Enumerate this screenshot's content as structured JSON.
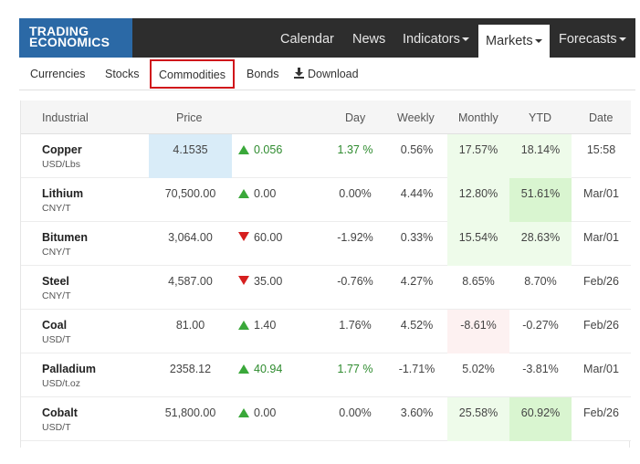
{
  "brand": {
    "line1": "TRADING",
    "line2": "ECONOMICS"
  },
  "nav": {
    "calendar": "Calendar",
    "news": "News",
    "indicators": "Indicators",
    "markets": "Markets",
    "forecasts": "Forecasts"
  },
  "subnav": {
    "currencies": "Currencies",
    "stocks": "Stocks",
    "commodities": "Commodities",
    "bonds": "Bonds",
    "download": "Download"
  },
  "table": {
    "headers": {
      "name": "Industrial",
      "price": "Price",
      "day": "Day",
      "weekly": "Weekly",
      "monthly": "Monthly",
      "ytd": "YTD",
      "date": "Date"
    },
    "rows": [
      {
        "name": "Copper",
        "unit": "USD/Lbs",
        "price": "4.1535",
        "change": "0.056",
        "direction": "up",
        "day": "1.37 %",
        "weekly": "0.56%",
        "monthly": "17.57%",
        "ytd": "18.14%",
        "date": "15:58"
      },
      {
        "name": "Lithium",
        "unit": "CNY/T",
        "price": "70,500.00",
        "change": "0.00",
        "direction": "up",
        "day": "0.00%",
        "weekly": "4.44%",
        "monthly": "12.80%",
        "ytd": "51.61%",
        "date": "Mar/01"
      },
      {
        "name": "Bitumen",
        "unit": "CNY/T",
        "price": "3,064.00",
        "change": "60.00",
        "direction": "down",
        "day": "-1.92%",
        "weekly": "0.33%",
        "monthly": "15.54%",
        "ytd": "28.63%",
        "date": "Mar/01"
      },
      {
        "name": "Steel",
        "unit": "CNY/T",
        "price": "4,587.00",
        "change": "35.00",
        "direction": "down",
        "day": "-0.76%",
        "weekly": "4.27%",
        "monthly": "8.65%",
        "ytd": "8.70%",
        "date": "Feb/26"
      },
      {
        "name": "Coal",
        "unit": "USD/T",
        "price": "81.00",
        "change": "1.40",
        "direction": "up",
        "day": "1.76%",
        "weekly": "4.52%",
        "monthly": "-8.61%",
        "ytd": "-0.27%",
        "date": "Feb/26"
      },
      {
        "name": "Palladium",
        "unit": "USD/t.oz",
        "price": "2358.12",
        "change": "40.94",
        "direction": "up",
        "day": "1.77 %",
        "weekly": "-1.71%",
        "monthly": "5.02%",
        "ytd": "-3.81%",
        "date": "Mar/01"
      },
      {
        "name": "Cobalt",
        "unit": "USD/T",
        "price": "51,800.00",
        "change": "0.00",
        "direction": "up",
        "day": "0.00%",
        "weekly": "3.60%",
        "monthly": "25.58%",
        "ytd": "60.92%",
        "date": "Feb/26"
      }
    ]
  },
  "colors": {
    "navbar": "#2d2d2d",
    "logo": "#2b69a6",
    "up_arrow": "#3aa83a",
    "down_arrow": "#d61f1f",
    "highlight_border": "#d0141a",
    "price_highlight": "#d9ecf8",
    "strong_green": "#d9f5d0",
    "light_green": "#eefbea",
    "light_red": "#fdf1f1"
  },
  "icons": {
    "download": "download-icon",
    "caret": "caret-down-icon",
    "up": "triangle-up-icon",
    "down": "triangle-down-icon"
  }
}
